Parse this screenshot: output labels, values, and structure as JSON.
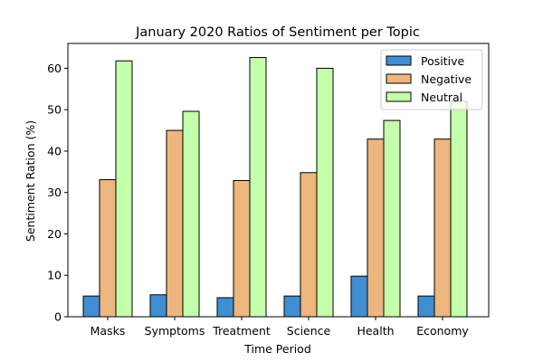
{
  "chart_data": {
    "type": "bar",
    "title": "January 2020 Ratios of Sentiment per Topic",
    "xlabel": "Time Period",
    "ylabel": "Sentiment Ration (%)",
    "categories": [
      "Masks",
      "Symptoms",
      "Treatment",
      "Science",
      "Health",
      "Economy"
    ],
    "ylim": [
      0,
      66
    ],
    "yticks": [
      0,
      10,
      20,
      30,
      40,
      50,
      60
    ],
    "grid": false,
    "legend_position": "top-right",
    "series": [
      {
        "name": "Positive",
        "color": "#3f8fd2",
        "values": [
          5.0,
          5.3,
          4.6,
          5.0,
          9.8,
          5.0
        ]
      },
      {
        "name": "Negative",
        "color": "#ecb67e",
        "values": [
          33.1,
          45.0,
          32.9,
          34.8,
          42.9,
          42.9
        ]
      },
      {
        "name": "Neutral",
        "color": "#c4ffac",
        "values": [
          61.8,
          49.6,
          62.6,
          60.0,
          47.4,
          52.0
        ]
      }
    ]
  }
}
